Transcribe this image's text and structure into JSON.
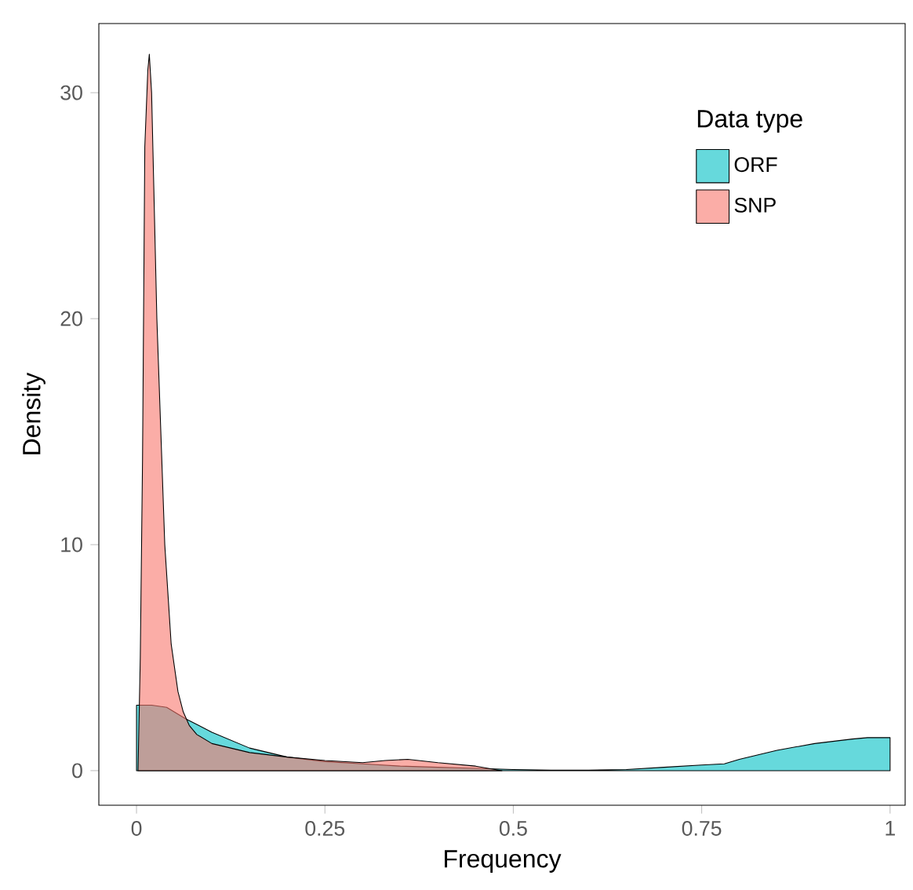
{
  "chart_data": {
    "type": "area",
    "xlabel": "Frequency",
    "ylabel": "Density",
    "legend_title": "Data type",
    "legend": "top right",
    "grid": false,
    "xlim": [
      -0.05,
      1.02
    ],
    "ylim": [
      -1.53,
      33.06
    ],
    "xticks": [
      0,
      0.25,
      0.5,
      0.75,
      1
    ],
    "yticks": [
      0,
      10,
      20,
      30
    ],
    "series": [
      {
        "name": "ORF",
        "color": "#00bfc4",
        "x": [
          0,
          0.02,
          0.04,
          0.065,
          0.1,
          0.15,
          0.2,
          0.25,
          0.3,
          0.35,
          0.4,
          0.45,
          0.5,
          0.55,
          0.6,
          0.65,
          0.7,
          0.75,
          0.78,
          0.8,
          0.85,
          0.9,
          0.95,
          0.97,
          1
        ],
        "values": [
          2.9,
          2.9,
          2.8,
          2.3,
          1.7,
          1.0,
          0.6,
          0.4,
          0.3,
          0.2,
          0.15,
          0.1,
          0.05,
          0.02,
          0.02,
          0.05,
          0.15,
          0.25,
          0.3,
          0.5,
          0.9,
          1.2,
          1.4,
          1.46,
          1.46
        ]
      },
      {
        "name": "SNP",
        "color": "#f8766d",
        "x": [
          0.002,
          0.005,
          0.008,
          0.011,
          0.015,
          0.017,
          0.02,
          0.027,
          0.0375,
          0.046,
          0.055,
          0.062,
          0.07,
          0.08,
          0.1,
          0.15,
          0.2,
          0.25,
          0.3,
          0.33,
          0.36,
          0.4,
          0.45,
          0.485
        ],
        "values": [
          0,
          5,
          13.8,
          27.6,
          31,
          31.7,
          30,
          20,
          10,
          5.6,
          3.5,
          2.6,
          2.0,
          1.6,
          1.2,
          0.8,
          0.6,
          0.45,
          0.35,
          0.45,
          0.5,
          0.35,
          0.2,
          0
        ]
      }
    ]
  }
}
